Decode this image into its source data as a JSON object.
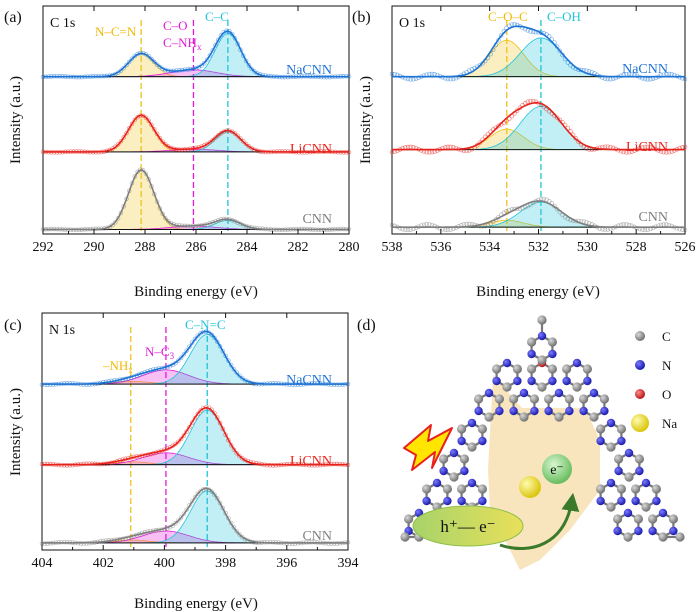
{
  "colors": {
    "CNN": "#7f7f7f",
    "LiCNN": "#e8231c",
    "NaCNN": "#1e74d6",
    "yellow": "#f2c21b",
    "magenta": "#e21ad8",
    "cyan": "#22c4dc"
  },
  "chart_data": [
    {
      "type": "line",
      "panel_label": "(a)",
      "title": "C 1s",
      "xlabel": "Binding energy (eV)",
      "ylabel": "Intensity (a.u.)",
      "xlim": [
        292,
        280
      ],
      "xticks": [
        "292",
        "290",
        "288",
        "286",
        "284",
        "282",
        "280"
      ],
      "series": [
        "CNN",
        "LiCNN",
        "NaCNN"
      ],
      "baselines": {
        "CNN": 0.02,
        "LiCNN": 0.36,
        "NaCNN": 0.69
      },
      "peaks": [
        {
          "label": "N–C=N",
          "center": 288.15,
          "color_key": "yellow",
          "heights": {
            "CNN": 0.26,
            "LiCNN": 0.16,
            "NaCNN": 0.1
          },
          "width": 0.5
        },
        {
          "label": "C–NHx",
          "center": 286.1,
          "color_key": "magenta",
          "heights": {
            "CNN": 0.015,
            "LiCNN": 0.012,
            "NaCNN": 0.03
          },
          "width": 0.9
        },
        {
          "label": "C–C",
          "center": 284.75,
          "color_key": "cyan",
          "heights": {
            "CNN": 0.04,
            "LiCNN": 0.09,
            "NaCNN": 0.19
          },
          "width": 0.5
        }
      ],
      "annotations": [
        "N–C=N",
        "C–O",
        "C–NH",
        "x",
        "C–C"
      ]
    },
    {
      "type": "line",
      "panel_label": "(b)",
      "title": "O 1s",
      "xlabel": "Binding energy (eV)",
      "ylabel": "Intensity (a.u.)",
      "xlim": [
        538,
        526
      ],
      "xticks": [
        "538",
        "536",
        "534",
        "532",
        "530",
        "528",
        "526"
      ],
      "series": [
        "CNN",
        "LiCNN",
        "NaCNN"
      ],
      "baselines": {
        "CNN": 0.03,
        "LiCNN": 0.37,
        "NaCNN": 0.69
      },
      "peaks": [
        {
          "label": "C–O–C",
          "center": 533.3,
          "color_key": "yellow",
          "heights": {
            "CNN": 0.03,
            "LiCNN": 0.09,
            "NaCNN": 0.16
          },
          "width": 0.7
        },
        {
          "label": "C–OH",
          "center": 531.9,
          "color_key": "cyan",
          "heights": {
            "CNN": 0.11,
            "LiCNN": 0.19,
            "NaCNN": 0.17
          },
          "width": 0.85
        }
      ],
      "annotations": [
        "C–O–C",
        "C–OH"
      ]
    },
    {
      "type": "line",
      "panel_label": "(c)",
      "title": "N 1s",
      "xlabel": "Binding energy (eV)",
      "ylabel": "Intensity (a.u.)",
      "xlim": [
        404,
        394
      ],
      "xticks": [
        "404",
        "402",
        "400",
        "398",
        "396",
        "394"
      ],
      "series": [
        "CNN",
        "LiCNN",
        "NaCNN"
      ],
      "baselines": {
        "CNN": 0.03,
        "LiCNN": 0.36,
        "NaCNN": 0.7
      },
      "peaks": [
        {
          "label": "–NHx",
          "center": 401.1,
          "color_key": "yellow",
          "heights": {
            "CNN": 0.012,
            "LiCNN": 0.012,
            "NaCNN": 0.012
          },
          "width": 0.6
        },
        {
          "label": "N–C3",
          "center": 399.95,
          "color_key": "magenta",
          "heights": {
            "CNN": 0.05,
            "LiCNN": 0.05,
            "NaCNN": 0.06
          },
          "width": 0.75
        },
        {
          "label": "C–N=C",
          "center": 398.6,
          "color_key": "cyan",
          "heights": {
            "CNN": 0.22,
            "LiCNN": 0.23,
            "NaCNN": 0.21
          },
          "width": 0.55
        }
      ],
      "annotations": [
        "–NH",
        "x",
        "N–C",
        "3",
        "C–N=C"
      ]
    }
  ],
  "schematic": {
    "panel_label": "(d)",
    "legend": [
      {
        "label": "C",
        "color": "#8a8a8a"
      },
      {
        "label": "N",
        "color": "#2424c8"
      },
      {
        "label": "O",
        "color": "#d42020"
      },
      {
        "label": "Na",
        "color": "#e8d21a"
      }
    ],
    "electron_label": "e⁻",
    "pair_label": "h⁺— e⁻"
  }
}
